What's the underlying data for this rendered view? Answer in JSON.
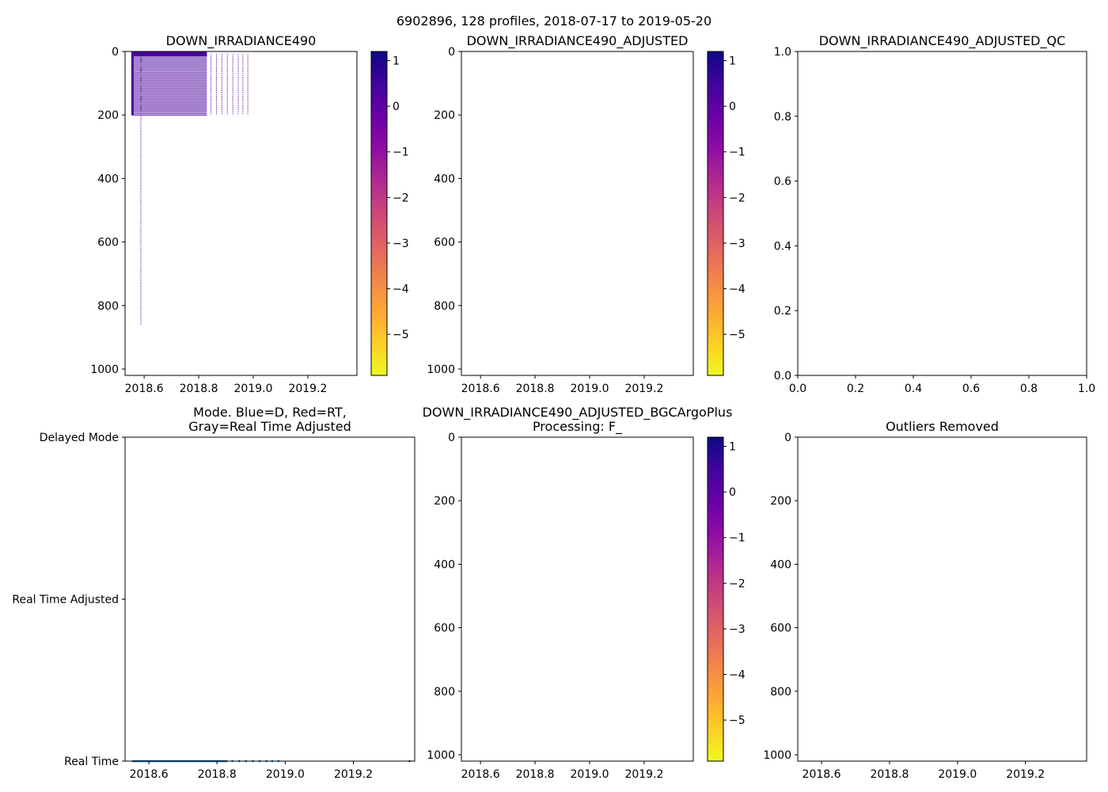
{
  "figure": {
    "suptitle": "6902896, 128 profiles, 2018-07-17 to 2019-05-20"
  },
  "colors": {
    "plasma": [
      "#0d0887",
      "#41049d",
      "#6a00a8",
      "#8f0da4",
      "#b12a90",
      "#cc4778",
      "#e16462",
      "#f2844b",
      "#fca636",
      "#fcce25",
      "#f0f921"
    ],
    "profile_line": "#5a0aa3",
    "mode_dots": "#1f77b4"
  },
  "chart_data": [
    {
      "id": "p1",
      "type": "heatmap",
      "title": "DOWN_IRRADIANCE490",
      "xlim": [
        2018.53,
        2019.38
      ],
      "ylim": [
        1020,
        0
      ],
      "xticks": [
        2018.6,
        2018.8,
        2019.0,
        2019.2
      ],
      "xtick_labels": [
        "2018.6",
        "2018.8",
        "2019.0",
        "2019.2"
      ],
      "yticks": [
        0,
        200,
        400,
        600,
        800,
        1000
      ],
      "ytick_labels": [
        "0",
        "200",
        "400",
        "600",
        "800",
        "1000"
      ],
      "dense_block": {
        "x": [
          2018.553,
          2018.83
        ],
        "depth": [
          0,
          200
        ],
        "row_step": 5,
        "top_bar_depth": 15
      },
      "profiles": [
        {
          "x": 2018.588,
          "depth_max": 860
        },
        {
          "x": 2018.845,
          "depth_max": 200
        },
        {
          "x": 2018.865,
          "depth_max": 200
        },
        {
          "x": 2018.885,
          "depth_max": 200
        },
        {
          "x": 2018.905,
          "depth_max": 200
        },
        {
          "x": 2018.925,
          "depth_max": 200
        },
        {
          "x": 2018.945,
          "depth_max": 200
        },
        {
          "x": 2018.962,
          "depth_max": 200
        },
        {
          "x": 2018.98,
          "depth_max": 200
        }
      ],
      "colorbar": {
        "range": [
          -5.9,
          1.2
        ],
        "ticks": [
          1,
          0,
          -1,
          -2,
          -3,
          -4,
          -5
        ],
        "tick_labels": [
          "1",
          "0",
          "−1",
          "−2",
          "−3",
          "−4",
          "−5"
        ]
      }
    },
    {
      "id": "p2",
      "type": "heatmap",
      "title": "DOWN_IRRADIANCE490_ADJUSTED",
      "xlim": [
        2018.53,
        2019.38
      ],
      "ylim": [
        1020,
        0
      ],
      "xticks": [
        2018.6,
        2018.8,
        2019.0,
        2019.2
      ],
      "xtick_labels": [
        "2018.6",
        "2018.8",
        "2019.0",
        "2019.2"
      ],
      "yticks": [
        0,
        200,
        400,
        600,
        800,
        1000
      ],
      "ytick_labels": [
        "0",
        "200",
        "400",
        "600",
        "800",
        "1000"
      ],
      "colorbar": {
        "range": [
          -5.9,
          1.2
        ],
        "ticks": [
          1,
          0,
          -1,
          -2,
          -3,
          -4,
          -5
        ],
        "tick_labels": [
          "1",
          "0",
          "−1",
          "−2",
          "−3",
          "−4",
          "−5"
        ]
      }
    },
    {
      "id": "p3",
      "type": "scatter",
      "title": "DOWN_IRRADIANCE490_ADJUSTED_QC",
      "xlim": [
        0,
        1
      ],
      "ylim": [
        0,
        1
      ],
      "xticks": [
        0,
        0.2,
        0.4,
        0.6,
        0.8,
        1.0
      ],
      "xtick_labels": [
        "0.0",
        "0.2",
        "0.4",
        "0.6",
        "0.8",
        "1.0"
      ],
      "yticks": [
        0,
        0.2,
        0.4,
        0.6,
        0.8,
        1.0
      ],
      "ytick_labels": [
        "0.0",
        "0.2",
        "0.4",
        "0.6",
        "0.8",
        "1.0"
      ]
    },
    {
      "id": "p4",
      "type": "scatter",
      "title": "Mode. Blue=D, Red=RT,",
      "title2": "Gray=Real Time Adjusted",
      "xlim": [
        2018.53,
        2019.38
      ],
      "ylim": [
        0,
        2
      ],
      "xticks": [
        2018.6,
        2018.8,
        2019.0,
        2019.2
      ],
      "xtick_labels": [
        "2018.6",
        "2018.8",
        "2019.0",
        "2019.2"
      ],
      "yticks": [
        0,
        1,
        2
      ],
      "ytick_labels": [
        "Real Time",
        "Real Time Adjusted",
        "Delayed Mode"
      ],
      "points": {
        "y": 0,
        "dense_x": [
          2018.553,
          2018.83
        ],
        "dense_step": 0.0025,
        "sparse_x": [
          2018.845,
          2018.865,
          2018.885,
          2018.905,
          2018.925,
          2018.945,
          2018.962,
          2018.98,
          2019.365
        ]
      }
    },
    {
      "id": "p5",
      "type": "heatmap",
      "title": "DOWN_IRRADIANCE490_ADJUSTED_BGCArgoPlus",
      "title2": "Processing: F_",
      "xlim": [
        2018.53,
        2019.38
      ],
      "ylim": [
        1020,
        0
      ],
      "xticks": [
        2018.6,
        2018.8,
        2019.0,
        2019.2
      ],
      "xtick_labels": [
        "2018.6",
        "2018.8",
        "2019.0",
        "2019.2"
      ],
      "yticks": [
        0,
        200,
        400,
        600,
        800,
        1000
      ],
      "ytick_labels": [
        "0",
        "200",
        "400",
        "600",
        "800",
        "1000"
      ],
      "colorbar": {
        "range": [
          -5.9,
          1.2
        ],
        "ticks": [
          1,
          0,
          -1,
          -2,
          -3,
          -4,
          -5
        ],
        "tick_labels": [
          "1",
          "0",
          "−1",
          "−2",
          "−3",
          "−4",
          "−5"
        ]
      }
    },
    {
      "id": "p6",
      "type": "heatmap",
      "title": "Outliers Removed",
      "xlim": [
        2018.53,
        2019.38
      ],
      "ylim": [
        1020,
        0
      ],
      "xticks": [
        2018.6,
        2018.8,
        2019.0,
        2019.2
      ],
      "xtick_labels": [
        "2018.6",
        "2018.8",
        "2019.0",
        "2019.2"
      ],
      "yticks": [
        0,
        200,
        400,
        600,
        800,
        1000
      ],
      "ytick_labels": [
        "0",
        "200",
        "400",
        "600",
        "800",
        "1000"
      ]
    }
  ]
}
